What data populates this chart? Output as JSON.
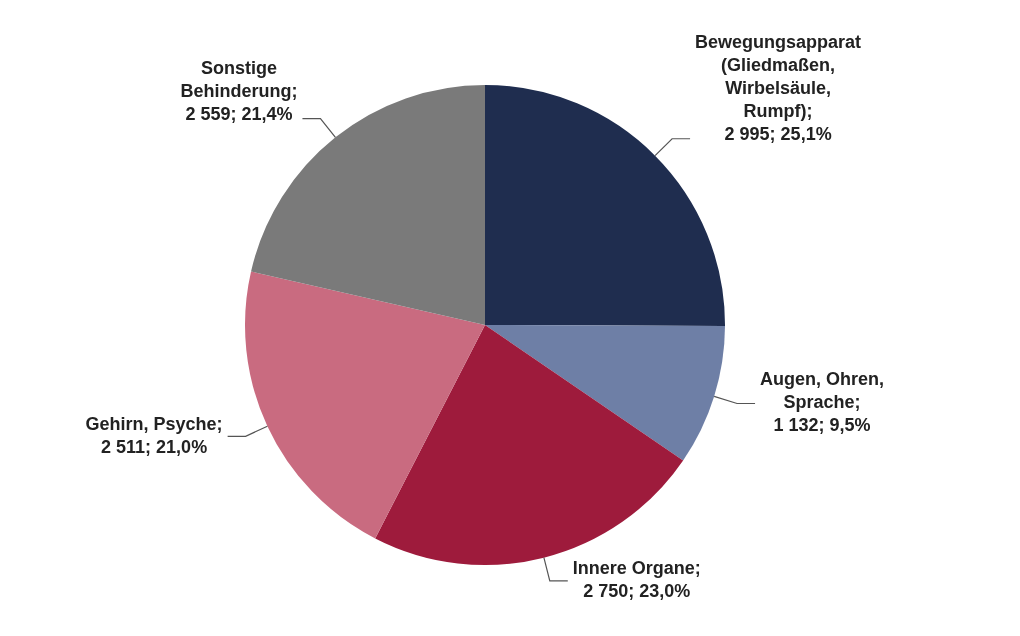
{
  "chart_data": {
    "type": "pie",
    "categories": [
      "Bewegungsapparat (Gliedmaßen, Wirbelsäule, Rumpf)",
      "Augen, Ohren, Sprache",
      "Innere Organe",
      "Gehirn, Psyche",
      "Sonstige Behinderung"
    ],
    "values": [
      2995,
      1132,
      2750,
      2511,
      2559
    ],
    "colors": [
      "#1f2d4f",
      "#6e7fa6",
      "#9e1b3c",
      "#c96b80",
      "#7a7a7a"
    ],
    "value_labels": [
      "; 2 995; 25,1%",
      "; 1 132; 9,5%",
      "; 2 750; 23,0%",
      "; 2 511; 21,0%",
      "; 2 559; 21,4%"
    ]
  }
}
